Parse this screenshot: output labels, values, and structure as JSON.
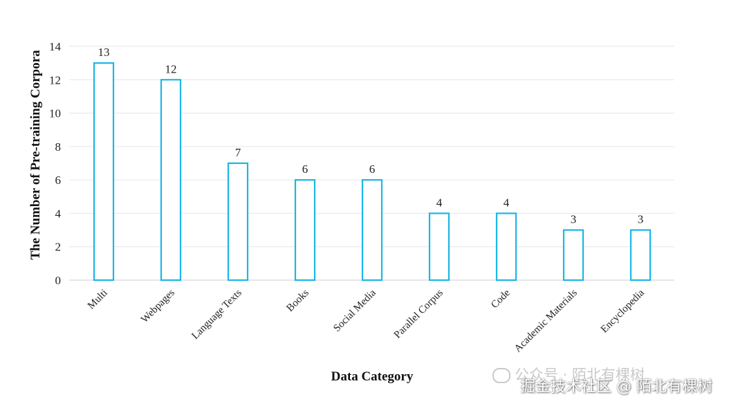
{
  "chart_data": {
    "type": "bar",
    "categories": [
      "Multi",
      "Webpages",
      "Language Texts",
      "Books",
      "Social Media",
      "Parallel Corpus",
      "Code",
      "Academic Materials",
      "Encyclopedia"
    ],
    "values": [
      13,
      12,
      7,
      6,
      6,
      4,
      4,
      3,
      3
    ],
    "xlabel": "Data Category",
    "ylabel": "The Number of Pre-training Corpora",
    "ylim": [
      0,
      14
    ],
    "yticks": [
      0,
      2,
      4,
      6,
      8,
      10,
      12,
      14
    ],
    "grid": true,
    "legend": "none",
    "bar_style": "outline",
    "bar_color": "#1bb6e6"
  },
  "watermark": {
    "line1": "公众号 · 陌北有棵树",
    "line2": "掘金技术社区 @ 陌北有棵树"
  }
}
